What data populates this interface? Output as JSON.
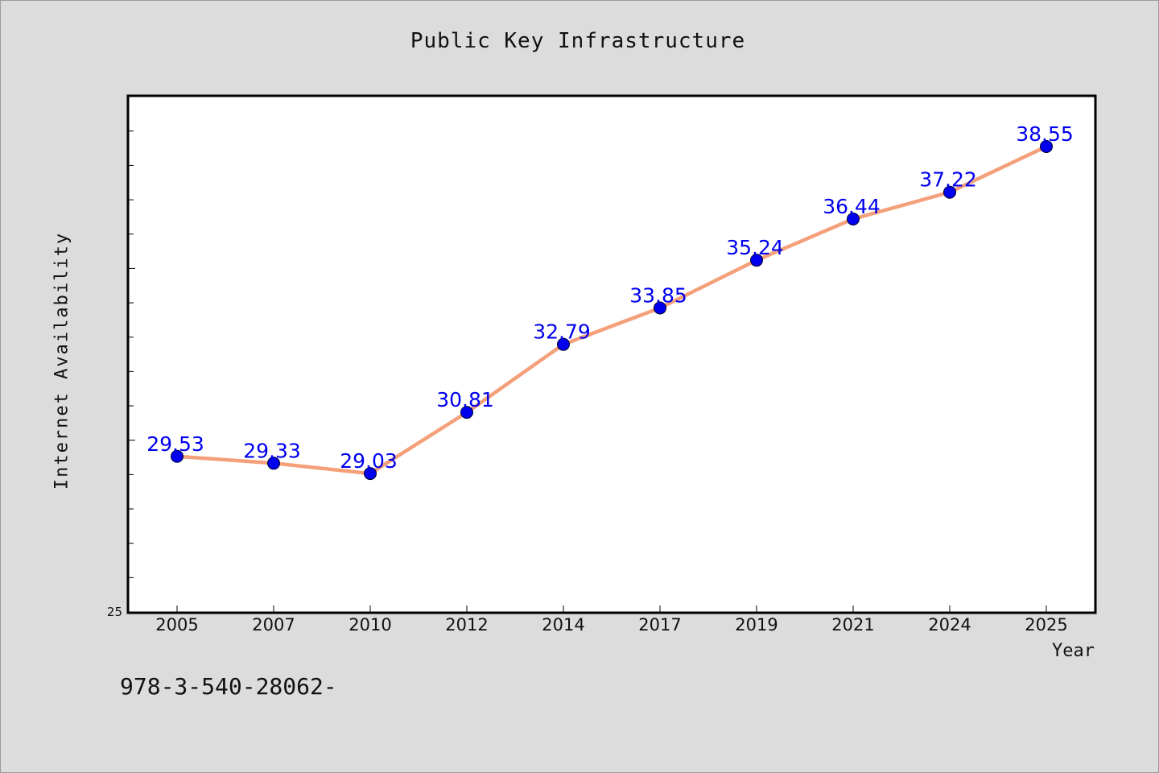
{
  "chart_data": {
    "type": "line",
    "title": "Public Key Infrastructure",
    "xlabel": "Year",
    "ylabel": "Internet Availability",
    "categories": [
      "2005",
      "2007",
      "2010",
      "2012",
      "2014",
      "2017",
      "2019",
      "2021",
      "2024",
      "2025"
    ],
    "series": [
      {
        "values": [
          29.53,
          29.33,
          29.03,
          30.81,
          32.79,
          33.85,
          35.24,
          36.44,
          37.22,
          38.55
        ],
        "color": "#f4a07a",
        "marker_color": "#0000ee",
        "label_color": "#0000ee"
      }
    ],
    "data_labels": [
      "29.53",
      "29.33",
      "29.03",
      "30.81",
      "32.79",
      "33.85",
      "35.24",
      "36.44",
      "37.22",
      "38.55"
    ],
    "ylim": [
      25,
      40
    ],
    "y_tick_labels": [
      "25"
    ],
    "grid": false,
    "legend": "none"
  },
  "footnote": "978-3-540-28062-"
}
